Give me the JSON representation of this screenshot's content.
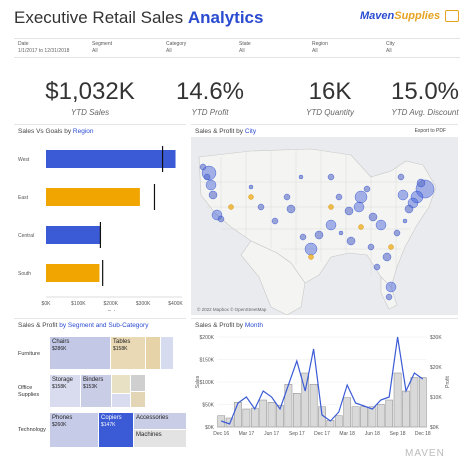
{
  "header": {
    "title_main": "Executive Retail Sales",
    "title_accent": "Analytics",
    "logo_part1": "Maven",
    "logo_part2": "Supplies"
  },
  "filters": [
    {
      "label": "Date",
      "value": "1/1/2017 to 12/31/2018"
    },
    {
      "label": "Segment",
      "value": "All"
    },
    {
      "label": "Category",
      "value": "All"
    },
    {
      "label": "State",
      "value": "All"
    },
    {
      "label": "Region",
      "value": "All"
    },
    {
      "label": "City",
      "value": "All"
    }
  ],
  "kpis": [
    {
      "value": "$1,032K",
      "label": "YTD Sales"
    },
    {
      "value": "14.6%",
      "label": "YTD Profit"
    },
    {
      "value": "16K",
      "label": "YTD Quantity"
    },
    {
      "value": "15.0%",
      "label": "YTD Avg. Discount"
    }
  ],
  "region_panel": {
    "title_main": "Sales Vs Goals by",
    "title_accent": "Region",
    "xlabel": "Sales"
  },
  "map_panel": {
    "title_main": "Sales & Profit by",
    "title_accent": "City",
    "export_label": "Export to PDF",
    "credit": "© 2022 Mapbox © OpenStreetMap"
  },
  "segment_panel": {
    "title_main": "Sales & Profit",
    "title_accent": "by Segment and Sub-Category",
    "segments": [
      {
        "label": "Furniture"
      },
      {
        "label": "Office Supplies"
      },
      {
        "label": "Technology"
      }
    ],
    "tiles": [
      {
        "name": "Chairs",
        "value": "$286K"
      },
      {
        "name": "Tables",
        "value": "$158K"
      },
      {
        "name": "Storage",
        "value": "$158K"
      },
      {
        "name": "Binders",
        "value": "$153K"
      },
      {
        "name": "Phones",
        "value": "$260K"
      },
      {
        "name": "Copiers",
        "value": "$147K"
      },
      {
        "name": "Accessories",
        "value": ""
      },
      {
        "name": "Machines",
        "value": ""
      }
    ]
  },
  "month_panel": {
    "title_main": "Sales & Profit by",
    "title_accent": "Month",
    "ylabel_left": "Sales",
    "ylabel_right": "Profit"
  },
  "watermark": "MAVEN",
  "colors": {
    "accent": "#2a4bd0",
    "orange": "#f0a500",
    "bar_blue": "#3b5bd6"
  },
  "chart_data": [
    {
      "type": "bar",
      "orientation": "horizontal",
      "categories": [
        "West",
        "East",
        "Central",
        "South"
      ],
      "values": [
        400,
        290,
        170,
        165
      ],
      "goals": [
        360,
        335,
        168,
        175
      ],
      "colors": [
        "#3b5bd6",
        "#f0a500",
        "#3b5bd6",
        "#f0a500"
      ],
      "xlabel": "Sales",
      "ticks": [
        "$0K",
        "$100K",
        "$200K",
        "$300K",
        "$400K"
      ],
      "tick_values": [
        0,
        100,
        200,
        300,
        400
      ],
      "xlim": [
        0,
        420
      ]
    },
    {
      "type": "bar",
      "categories": [
        "Dec 16",
        "Jan 17",
        "Feb 17",
        "Mar 17",
        "Apr 17",
        "May 17",
        "Jun 17",
        "Jul 17",
        "Aug 17",
        "Sep 17",
        "Oct 17",
        "Nov 17",
        "Dec 17",
        "Jan 18",
        "Feb 18",
        "Mar 18",
        "Apr 18",
        "May 18",
        "Jun 18",
        "Jul 18",
        "Aug 18",
        "Sep 18",
        "Oct 18",
        "Nov 18",
        "Dec 18"
      ],
      "x_tick_labels": [
        "Dec 16",
        "Mar 17",
        "Jun 17",
        "Sep 17",
        "Dec 17",
        "Mar 18",
        "Jun 18",
        "Sep 18",
        "Dec 18"
      ],
      "sales": [
        25,
        20,
        55,
        40,
        42,
        60,
        55,
        48,
        95,
        75,
        120,
        95,
        45,
        15,
        25,
        65,
        45,
        45,
        45,
        50,
        60,
        120,
        80,
        110,
        110
      ],
      "profit": [
        2,
        1,
        8,
        10,
        6,
        12,
        10,
        6,
        14,
        22,
        12,
        26,
        4,
        2,
        5,
        14,
        8,
        7,
        6,
        9,
        10,
        30,
        12,
        18,
        16
      ],
      "ylabel": "Sales",
      "y2label": "Profit",
      "yticks": [
        "$0K",
        "$50K",
        "$100K",
        "$150K",
        "$200K"
      ],
      "ytick_values": [
        0,
        50,
        100,
        150,
        200
      ],
      "y2ticks": [
        "$0K",
        "$10K",
        "$20K",
        "$30K"
      ],
      "y2tick_values": [
        0,
        10,
        20,
        30
      ],
      "ylim": [
        0,
        200
      ],
      "y2lim": [
        0,
        30
      ]
    }
  ]
}
